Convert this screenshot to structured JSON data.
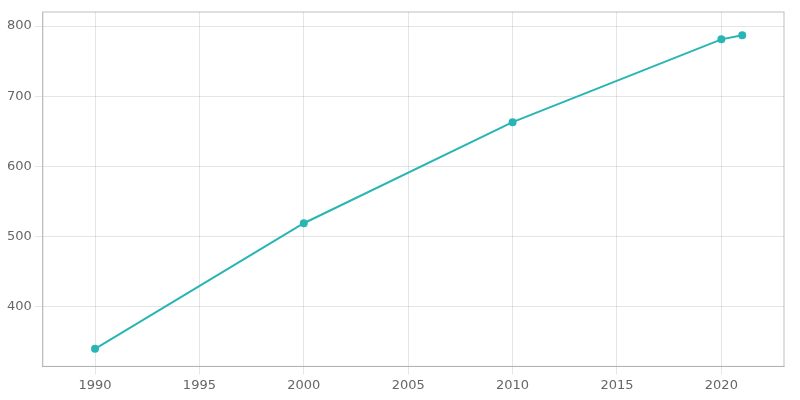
{
  "chart_data": {
    "type": "line",
    "x": [
      1990,
      2000,
      2010,
      2020,
      2021
    ],
    "values": [
      340,
      519,
      663,
      781,
      787
    ],
    "color": "#2ab5b5",
    "marker": "circle",
    "xlim": [
      1987.5,
      2023
    ],
    "ylim": [
      315,
      820
    ],
    "xticks": [
      1990,
      1995,
      2000,
      2005,
      2010,
      2015,
      2020
    ],
    "yticks": [
      400,
      500,
      600,
      700,
      800
    ],
    "grid": true
  }
}
